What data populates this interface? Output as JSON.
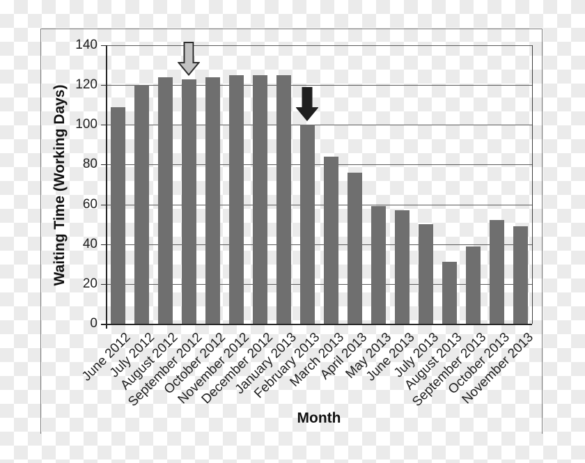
{
  "chart_data": {
    "type": "bar",
    "title": "",
    "xlabel": "Month",
    "ylabel": "Waiting Time (Working Days)",
    "ylim": [
      0,
      140
    ],
    "yticks": [
      0,
      20,
      40,
      60,
      80,
      100,
      120,
      140
    ],
    "grid": "horizontal-gridlines",
    "legend": "none",
    "categories": [
      "June 2012",
      "July 2012",
      "August 2012",
      "September 2012",
      "October 2012",
      "November 2012",
      "December 2012",
      "January 2013",
      "February 2013",
      "March 2013",
      "April 2013",
      "May 2013",
      "June 2013",
      "July 2013",
      "August 2013",
      "September 2013",
      "October 2013",
      "November 2013"
    ],
    "values": [
      109,
      120,
      124,
      123,
      124,
      125,
      125,
      125,
      100,
      84,
      76,
      59,
      57,
      50,
      31,
      39,
      52,
      49
    ],
    "annotations": [
      {
        "name": "gray-outline-down-arrow",
        "type": "arrow-down",
        "target_category": "September 2012",
        "fill": "#c2c2c2",
        "outline": "#2e2e2e"
      },
      {
        "name": "black-down-arrow",
        "type": "arrow-down",
        "target_category": "February 2013",
        "fill": "#1f1f1f",
        "outline": "#1f1f1f"
      }
    ]
  },
  "colors": {
    "bar": "#6f6f6f",
    "gridline": "#595959",
    "axis": "#262626",
    "plot_right_border": "#3d3d3d",
    "frame_border": "#7a7a7a",
    "text": "#1f1f1f",
    "checker_light": "#ffffff",
    "checker_dark": "#ebebeb"
  }
}
